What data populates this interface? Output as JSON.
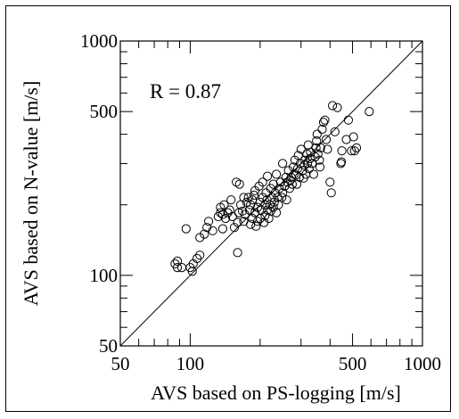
{
  "chart_data": {
    "type": "scatter",
    "title": "",
    "xlabel": "AVS based on PS-logging [m/s]",
    "ylabel": "AVS based on N-value [m/s]",
    "xscale": "log",
    "yscale": "log",
    "xlim": [
      50,
      1000
    ],
    "ylim": [
      50,
      1000
    ],
    "xticks": [
      50,
      100,
      500,
      1000
    ],
    "yticks": [
      50,
      100,
      500,
      1000
    ],
    "xtick_labels": [
      "50",
      "100",
      "500",
      "1000"
    ],
    "ytick_labels": [
      "50",
      "100",
      "500",
      "1000"
    ],
    "grid": false,
    "legend": "none",
    "annotation": "R = 0.87",
    "reference_line": "1:1",
    "points": [
      [
        86,
        112
      ],
      [
        88,
        108
      ],
      [
        88,
        115
      ],
      [
        92,
        108
      ],
      [
        96,
        158
      ],
      [
        100,
        108
      ],
      [
        102,
        104
      ],
      [
        103,
        112
      ],
      [
        107,
        118
      ],
      [
        110,
        122
      ],
      [
        110,
        145
      ],
      [
        115,
        150
      ],
      [
        118,
        160
      ],
      [
        120,
        170
      ],
      [
        125,
        155
      ],
      [
        132,
        178
      ],
      [
        135,
        185
      ],
      [
        135,
        195
      ],
      [
        138,
        158
      ],
      [
        138,
        182
      ],
      [
        140,
        200
      ],
      [
        142,
        175
      ],
      [
        145,
        185
      ],
      [
        148,
        190
      ],
      [
        150,
        210
      ],
      [
        152,
        178
      ],
      [
        155,
        160
      ],
      [
        158,
        250
      ],
      [
        160,
        125
      ],
      [
        160,
        168
      ],
      [
        162,
        185
      ],
      [
        163,
        245
      ],
      [
        165,
        200
      ],
      [
        168,
        188
      ],
      [
        170,
        170
      ],
      [
        170,
        215
      ],
      [
        172,
        182
      ],
      [
        175,
        205
      ],
      [
        178,
        215
      ],
      [
        180,
        190
      ],
      [
        182,
        165
      ],
      [
        182,
        200
      ],
      [
        185,
        175
      ],
      [
        185,
        210
      ],
      [
        188,
        220
      ],
      [
        190,
        185
      ],
      [
        190,
        230
      ],
      [
        192,
        162
      ],
      [
        195,
        170
      ],
      [
        195,
        195
      ],
      [
        198,
        240
      ],
      [
        200,
        175
      ],
      [
        200,
        205
      ],
      [
        202,
        190
      ],
      [
        205,
        215
      ],
      [
        205,
        250
      ],
      [
        208,
        168
      ],
      [
        210,
        180
      ],
      [
        210,
        200
      ],
      [
        212,
        225
      ],
      [
        214,
        210
      ],
      [
        215,
        190
      ],
      [
        215,
        265
      ],
      [
        218,
        175
      ],
      [
        220,
        200
      ],
      [
        222,
        188
      ],
      [
        222,
        235
      ],
      [
        225,
        215
      ],
      [
        228,
        195
      ],
      [
        228,
        245
      ],
      [
        230,
        205
      ],
      [
        232,
        225
      ],
      [
        235,
        185
      ],
      [
        235,
        270
      ],
      [
        238,
        215
      ],
      [
        240,
        200
      ],
      [
        242,
        235
      ],
      [
        245,
        250
      ],
      [
        248,
        215
      ],
      [
        250,
        225
      ],
      [
        250,
        300
      ],
      [
        255,
        240
      ],
      [
        258,
        262
      ],
      [
        260,
        210
      ],
      [
        262,
        250
      ],
      [
        265,
        280
      ],
      [
        268,
        235
      ],
      [
        270,
        255
      ],
      [
        272,
        262
      ],
      [
        275,
        245
      ],
      [
        278,
        290
      ],
      [
        280,
        270
      ],
      [
        282,
        310
      ],
      [
        285,
        268
      ],
      [
        288,
        245
      ],
      [
        290,
        285
      ],
      [
        292,
        325
      ],
      [
        295,
        262
      ],
      [
        298,
        300
      ],
      [
        300,
        345
      ],
      [
        305,
        280
      ],
      [
        308,
        260
      ],
      [
        310,
        295
      ],
      [
        312,
        310
      ],
      [
        315,
        270
      ],
      [
        318,
        330
      ],
      [
        320,
        300
      ],
      [
        322,
        360
      ],
      [
        325,
        285
      ],
      [
        328,
        315
      ],
      [
        330,
        335
      ],
      [
        335,
        300
      ],
      [
        340,
        270
      ],
      [
        345,
        320
      ],
      [
        348,
        350
      ],
      [
        350,
        375
      ],
      [
        352,
        400
      ],
      [
        355,
        330
      ],
      [
        360,
        310
      ],
      [
        362,
        290
      ],
      [
        365,
        350
      ],
      [
        370,
        420
      ],
      [
        375,
        450
      ],
      [
        380,
        460
      ],
      [
        385,
        380
      ],
      [
        390,
        345
      ],
      [
        400,
        250
      ],
      [
        405,
        225
      ],
      [
        410,
        530
      ],
      [
        420,
        410
      ],
      [
        430,
        520
      ],
      [
        445,
        300
      ],
      [
        448,
        305
      ],
      [
        450,
        340
      ],
      [
        470,
        380
      ],
      [
        480,
        460
      ],
      [
        495,
        340
      ],
      [
        505,
        390
      ],
      [
        510,
        340
      ],
      [
        520,
        350
      ],
      [
        590,
        500
      ]
    ]
  }
}
